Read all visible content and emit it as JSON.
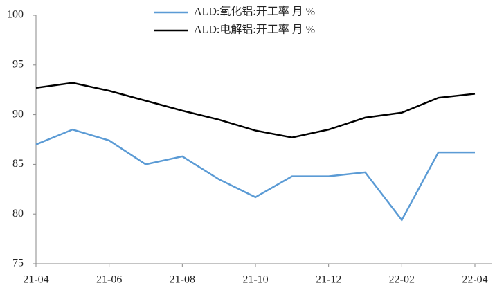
{
  "chart_data": {
    "type": "line",
    "categories": [
      "21-04",
      null,
      "21-06",
      null,
      "21-08",
      null,
      "21-10",
      null,
      "21-12",
      null,
      "22-02",
      null,
      "22-04"
    ],
    "series": [
      {
        "name": "ALD:氧化铝:开工率 月 %",
        "color": "#5b9bd5",
        "values": [
          87.0,
          88.5,
          87.4,
          85.0,
          85.8,
          83.5,
          81.7,
          83.8,
          83.8,
          84.2,
          79.4,
          86.2,
          86.2
        ]
      },
      {
        "name": "ALD:电解铝:开工率 月 %",
        "color": "#000000",
        "values": [
          92.7,
          93.2,
          92.4,
          91.4,
          90.4,
          89.5,
          88.4,
          87.7,
          88.5,
          89.7,
          90.2,
          91.7,
          92.1
        ]
      }
    ],
    "ylim": [
      75,
      100
    ],
    "yticks": [
      75,
      80,
      85,
      90,
      95,
      100
    ],
    "legend": "top"
  }
}
